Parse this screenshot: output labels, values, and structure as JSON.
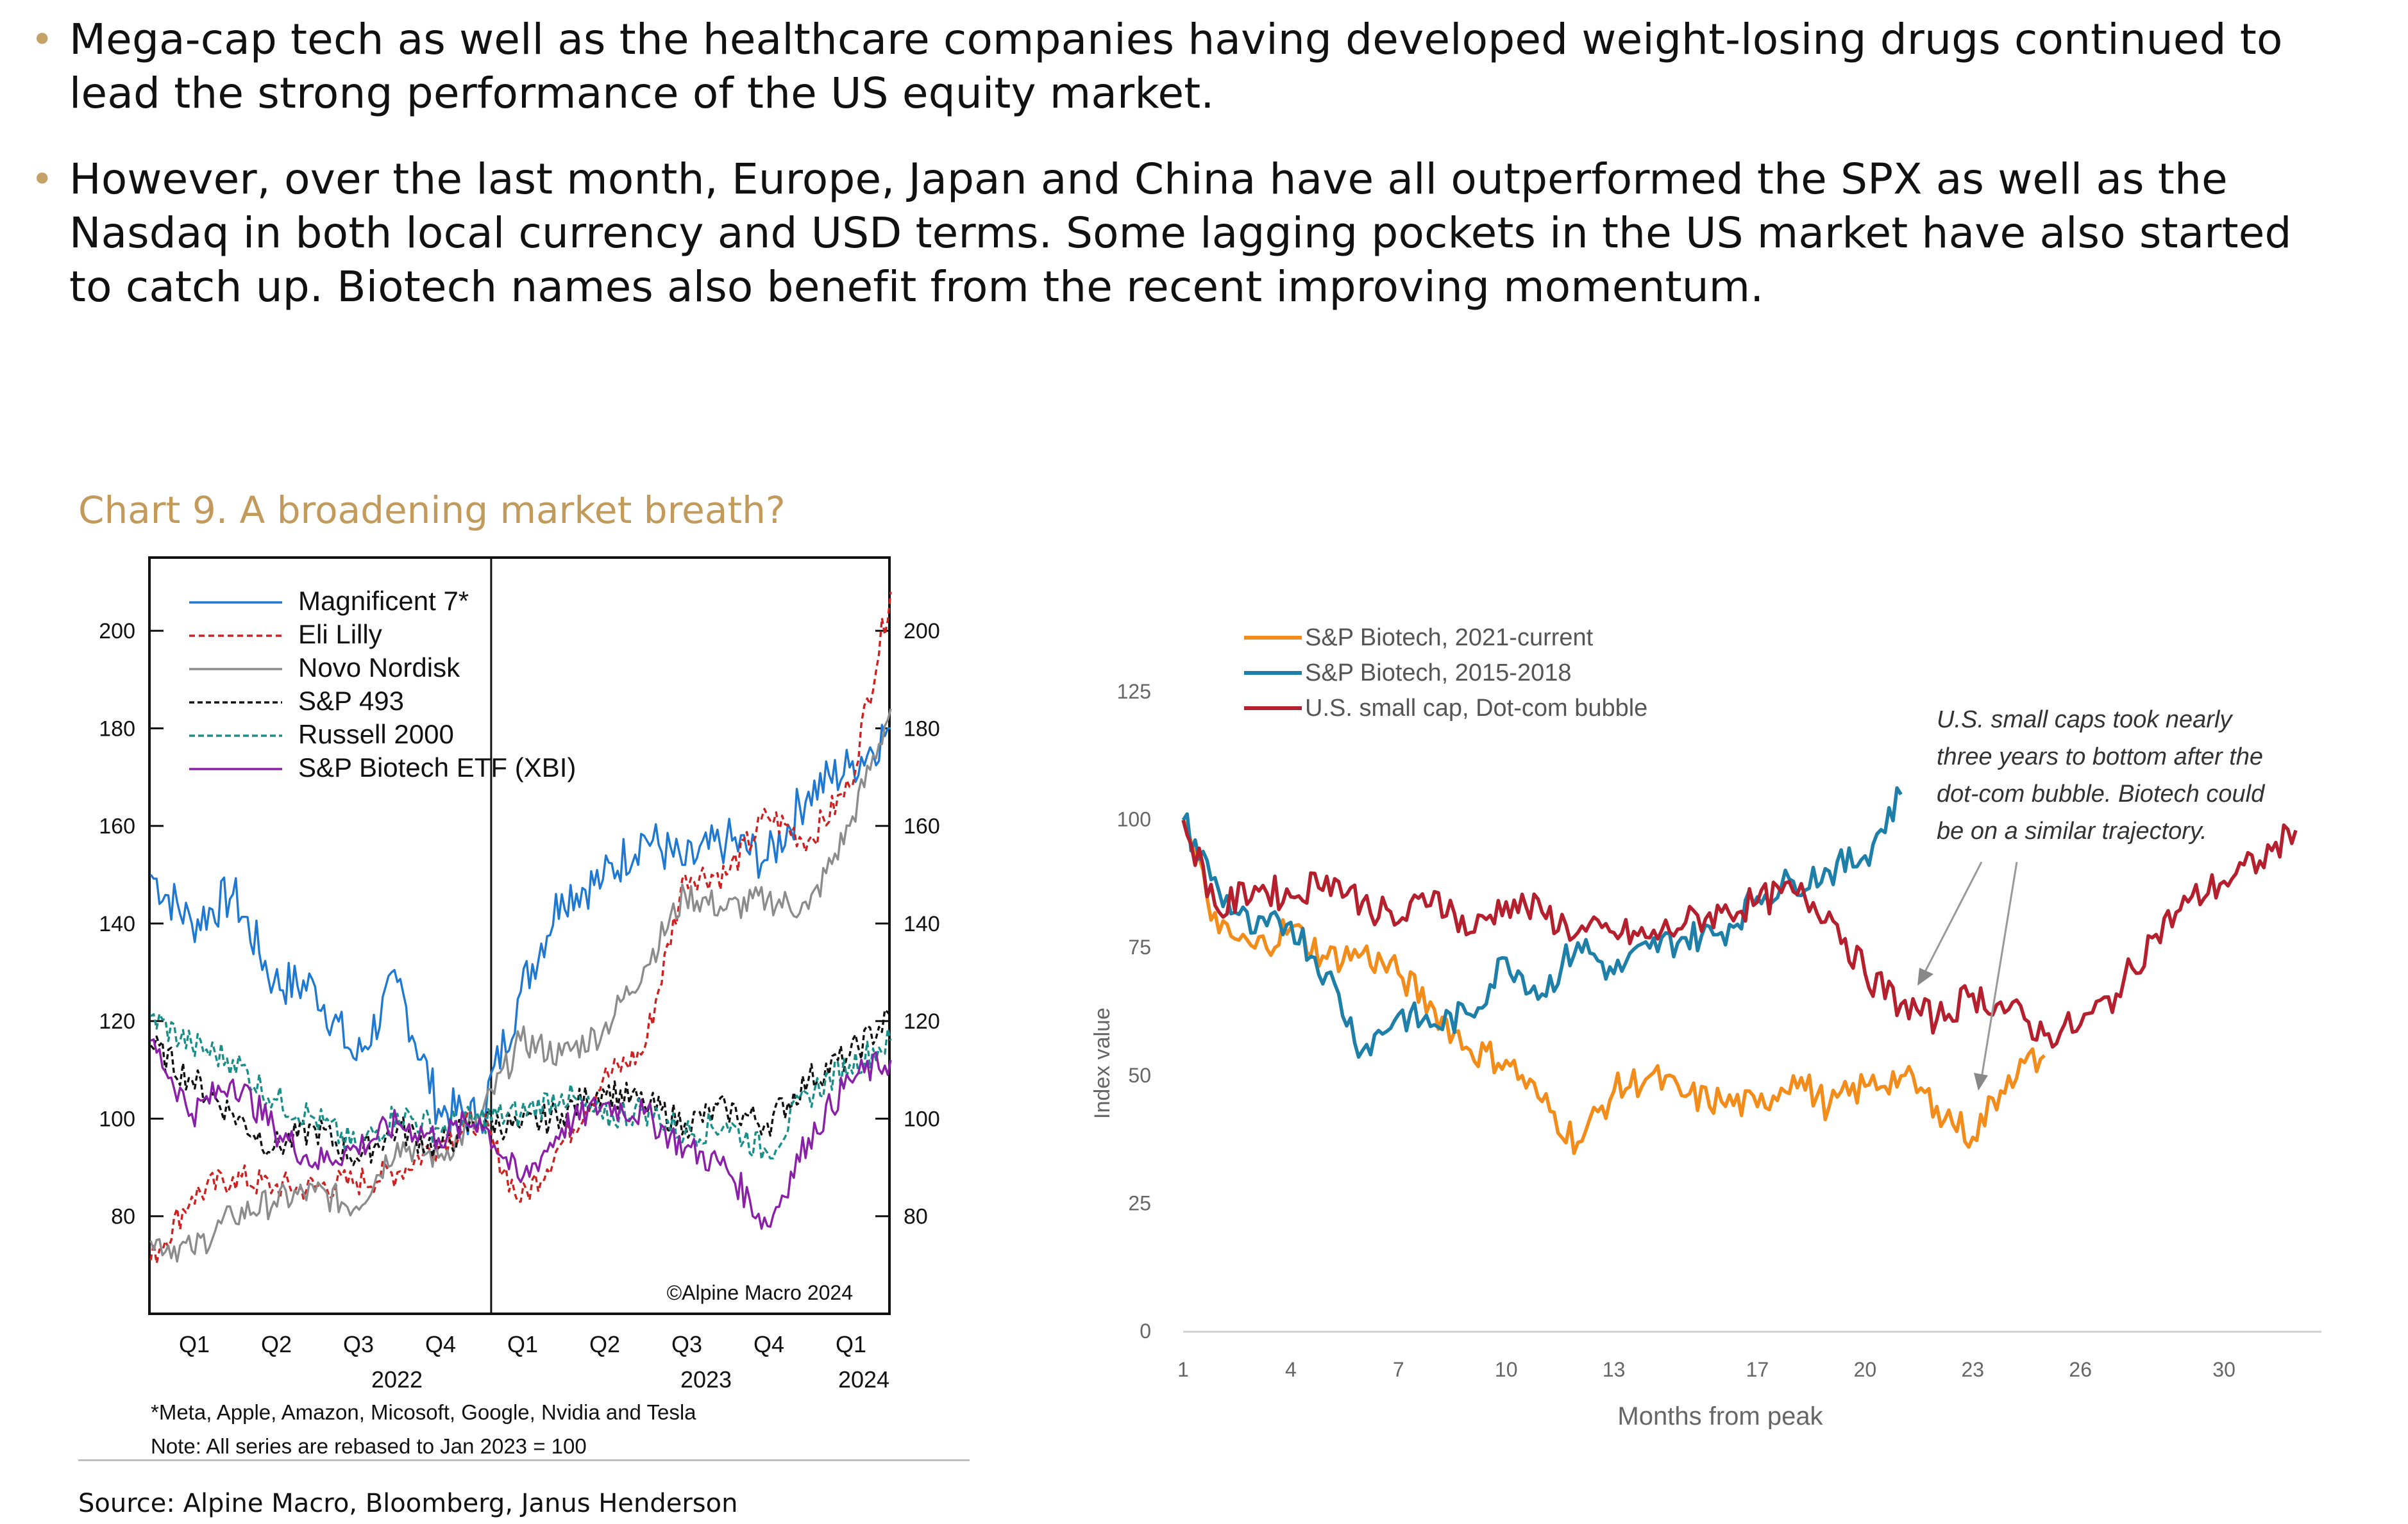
{
  "bullets": [
    "Mega-cap tech as well as the healthcare companies having developed weight-losing drugs continued to lead the strong performance of the US equity market.",
    "However, over the last month, Europe, Japan and China have all outperformed the SPX as well as the Nasdaq in both local currency and USD terms. Some lagging pockets in the US market have also started to catch up. Biotech names also benefit from the recent improving momentum."
  ],
  "chart_title": "Chart 9. A broadening market breath?",
  "source": "Source: Alpine Macro, Bloomberg, Janus Henderson",
  "colors": {
    "bullet": "#c4a266",
    "title": "#c29b5c"
  },
  "chart_data": [
    {
      "type": "line",
      "x_ticks": [
        "Q1",
        "Q2",
        "Q3",
        "Q4",
        "Q1",
        "Q2",
        "Q3",
        "Q4",
        "Q1"
      ],
      "years": [
        "2022",
        "2023",
        "2024"
      ],
      "ylim": [
        60,
        215
      ],
      "y_ticks": [
        80,
        100,
        120,
        140,
        160,
        180,
        200
      ],
      "copyright": "©Alpine Macro 2024",
      "footnote": "*Meta, Apple, Amazon, Micosoft, Google, Nvidia and Tesla",
      "note": "Note: All series are rebased to Jan 2023 = 100",
      "x": [
        0,
        0.5,
        1,
        1.5,
        2,
        2.5,
        3,
        3.5,
        4,
        4.5,
        5,
        5.5,
        6,
        6.5,
        7,
        7.5,
        8,
        8.5,
        9
      ],
      "series": [
        {
          "name": "Magnificent 7*",
          "color": "#1f78d1",
          "dash": "",
          "values": [
            150,
            140,
            146,
            128,
            127,
            112,
            128,
            102,
            100,
            126,
            146,
            149,
            158,
            152,
            157,
            153,
            167,
            172,
            180
          ]
        },
        {
          "name": "Eli Lilly",
          "color": "#cc2222",
          "dash": "9,6",
          "values": [
            71,
            84,
            88,
            86,
            86,
            87,
            89,
            95,
            100,
            83,
            95,
            108,
            114,
            150,
            150,
            162,
            157,
            168,
            208
          ]
        },
        {
          "name": "Novo Nordisk",
          "color": "#8c8c8c",
          "dash": "",
          "values": [
            75,
            73,
            80,
            83,
            85,
            82,
            95,
            92,
            100,
            116,
            113,
            118,
            131,
            146,
            143,
            145,
            143,
            160,
            184
          ]
        },
        {
          "name": "S&P 493",
          "color": "#111111",
          "dash": "8,5",
          "values": [
            115,
            108,
            101,
            94,
            98,
            92,
            98,
            94,
            100,
            98,
            101,
            106,
            103,
            99,
            102,
            99,
            108,
            113,
            121
          ]
        },
        {
          "name": "Russell 2000",
          "color": "#1a8f8a",
          "dash": "9,5",
          "values": [
            121,
            115,
            112,
            104,
            100,
            94,
            101,
            98,
            100,
            101,
            105,
            100,
            102,
            97,
            99,
            93,
            105,
            111,
            116
          ]
        },
        {
          "name": "S&P Biotech ETF (XBI)",
          "color": "#8a1fa8",
          "dash": "",
          "values": [
            116,
            101,
            108,
            98,
            91,
            94,
            99,
            96,
            100,
            87,
            98,
            103,
            101,
            94,
            90,
            78,
            96,
            108,
            112
          ]
        }
      ]
    },
    {
      "type": "line",
      "xlabel": "Months from peak",
      "ylabel": "Index value",
      "x_ticks": [
        1,
        4,
        7,
        10,
        13,
        17,
        20,
        23,
        26,
        30
      ],
      "y_ticks": [
        0,
        25,
        50,
        75,
        100,
        125
      ],
      "xlim": [
        1,
        32
      ],
      "ylim": [
        0,
        125
      ],
      "annotation": [
        "U.S. small caps took nearly",
        "three years to bottom after the",
        "dot-com bubble. Biotech could",
        "be on a similar trajectory."
      ],
      "series": [
        {
          "name": "S&P Biotech, 2021-current",
          "color": "#f28c1b",
          "x": [
            1,
            2,
            3,
            4,
            5,
            6,
            7,
            8,
            9,
            10,
            11,
            12,
            13,
            14,
            15,
            16,
            17,
            18,
            19,
            20,
            21,
            22,
            23,
            24,
            25
          ],
          "values": [
            100,
            78,
            75,
            79,
            73,
            74,
            70,
            63,
            55,
            53,
            45,
            37,
            47,
            50,
            46,
            45,
            44,
            50,
            44,
            48,
            50,
            44,
            38,
            50,
            54
          ]
        },
        {
          "name": "S&P Biotech, 2015-2018",
          "color": "#1e7fa8",
          "x": [
            1,
            2,
            3,
            4,
            5,
            6,
            7,
            8,
            9,
            10,
            11,
            12,
            13,
            14,
            15,
            16,
            17,
            18,
            19,
            20,
            21
          ],
          "values": [
            100,
            86,
            78,
            80,
            70,
            55,
            62,
            60,
            62,
            73,
            66,
            76,
            70,
            75,
            77,
            78,
            85,
            88,
            90,
            93,
            105
          ]
        },
        {
          "name": "U.S. small cap, Dot-com bubble",
          "color": "#b5202e",
          "x": [
            1,
            2,
            3,
            4,
            5,
            6,
            7,
            8,
            9,
            10,
            11,
            12,
            13,
            14,
            15,
            16,
            17,
            18,
            19,
            20,
            21,
            22,
            23,
            24,
            25,
            26,
            27,
            28,
            29,
            30,
            31,
            32
          ],
          "values": [
            100,
            82,
            87,
            85,
            89,
            84,
            80,
            86,
            78,
            84,
            82,
            78,
            78,
            77,
            80,
            82,
            84,
            86,
            82,
            70,
            64,
            61,
            66,
            63,
            58,
            60,
            66,
            77,
            84,
            88,
            92,
            98
          ]
        }
      ]
    }
  ]
}
